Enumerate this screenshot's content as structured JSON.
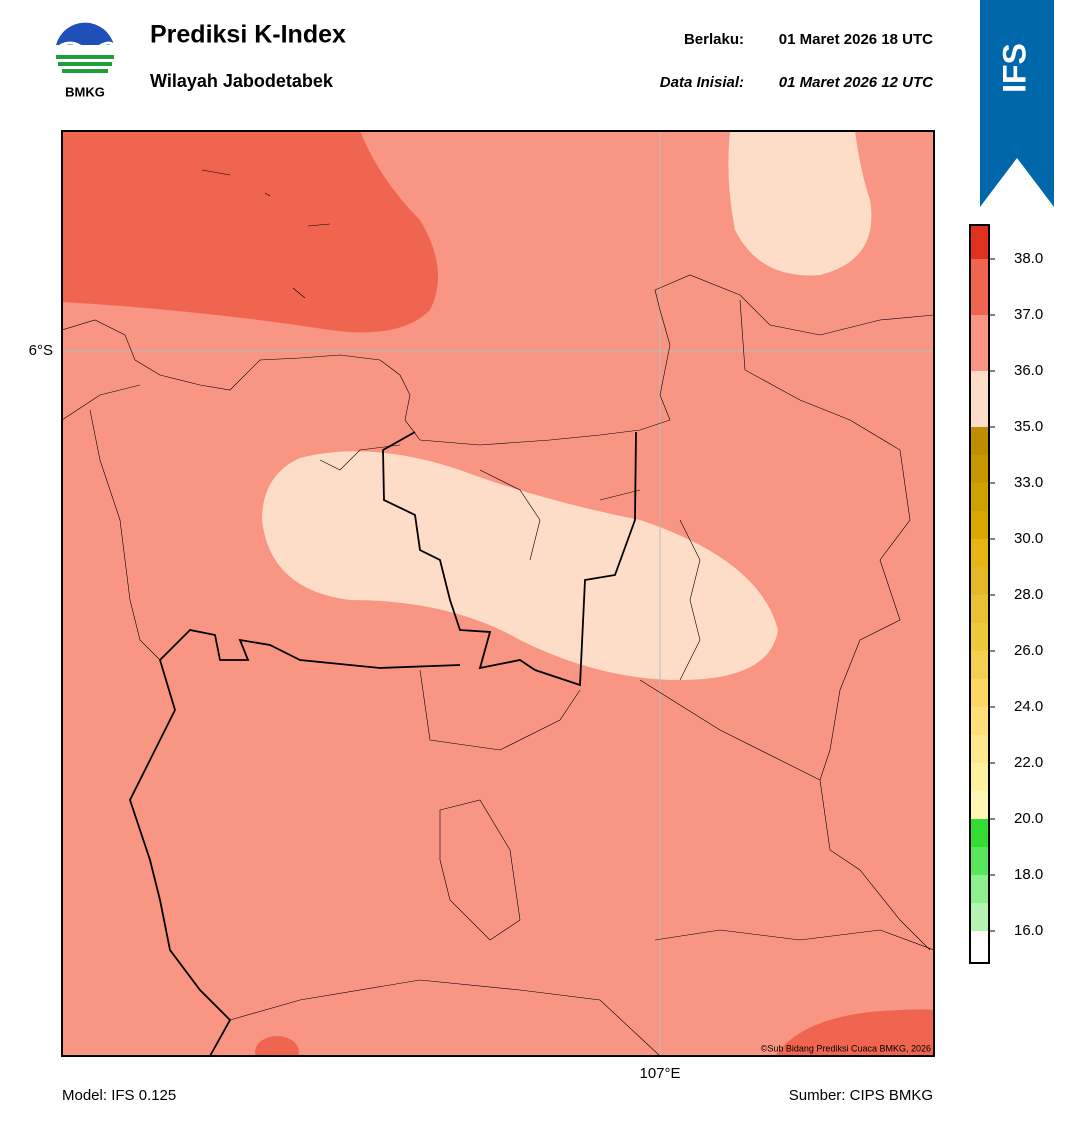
{
  "header": {
    "title": "Prediksi K-Index",
    "subtitle": "Wilayah Jabodetabek",
    "logo_text": "BMKG",
    "valid_label": "Berlaku:",
    "valid_time": "01 Maret 2026 18 UTC",
    "init_label": "Data Inisial:",
    "init_time": "01 Maret 2026 12 UTC",
    "badge": "IFS"
  },
  "map": {
    "lat_label": "6°S",
    "lon_label": "107°E",
    "credit": "©Sub Bidang Prediksi Cuaca BMKG, 2026"
  },
  "colorbar": {
    "ticks": [
      "16.0",
      "18.0",
      "20.0",
      "22.0",
      "24.0",
      "26.0",
      "28.0",
      "30.0",
      "33.0",
      "35.0",
      "36.0",
      "37.0",
      "38.0"
    ]
  },
  "footer": {
    "model": "Model: IFS 0.125",
    "source": "Sumber: CIPS BMKG"
  }
}
